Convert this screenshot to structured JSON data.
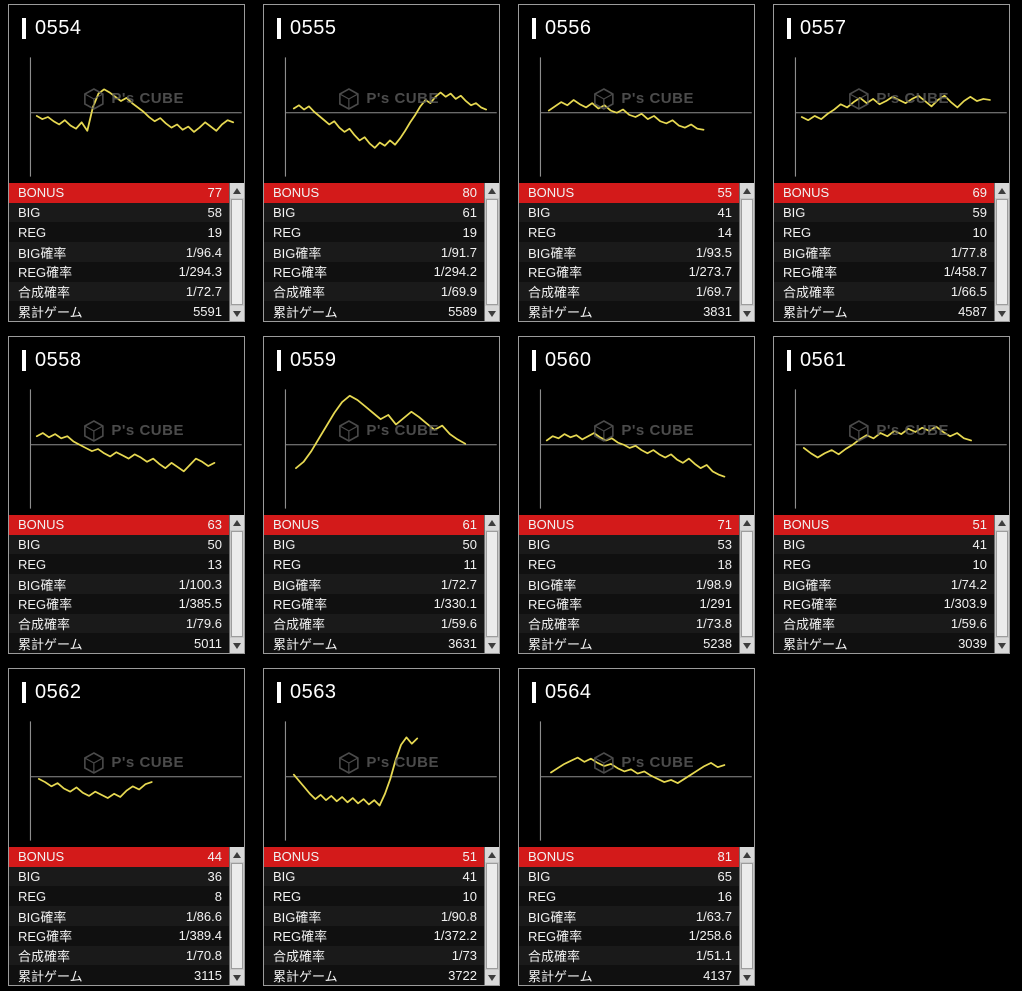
{
  "watermark": {
    "brand": "P's CUBE"
  },
  "labels": {
    "bonus": "BONUS",
    "big": "BIG",
    "reg": "REG",
    "big_rate": "BIG確率",
    "reg_rate": "REG確率",
    "combined_rate": "合成確率",
    "total_games": "累計ゲーム"
  },
  "colors": {
    "line": "#e7d952",
    "axis": "#8d8d8d",
    "bonus_bg": "#d31a1a",
    "watermark": "#5e5e5e"
  },
  "machines": [
    {
      "id": "0554",
      "bonus": "77",
      "big": "58",
      "reg": "19",
      "big_rate": "1/96.4",
      "reg_rate": "1/294.3",
      "combined_rate": "1/72.7",
      "total_games": "5591",
      "trend": {
        "start": 0.03,
        "end": 0.97,
        "y": [
          -3,
          -6,
          -4,
          -8,
          -11,
          -7,
          -12,
          -15,
          -9,
          -17,
          5,
          18,
          22,
          19,
          15,
          11,
          14,
          9,
          5,
          1,
          -4,
          -8,
          -5,
          -10,
          -14,
          -11,
          -16,
          -13,
          -18,
          -14,
          -9,
          -13,
          -17,
          -11,
          -7,
          -9
        ]
      }
    },
    {
      "id": "0555",
      "bonus": "80",
      "big": "61",
      "reg": "19",
      "big_rate": "1/91.7",
      "reg_rate": "1/294.2",
      "combined_rate": "1/69.9",
      "total_games": "5589",
      "trend": {
        "start": 0.04,
        "end": 0.96,
        "y": [
          4,
          7,
          3,
          6,
          1,
          -3,
          -7,
          -11,
          -8,
          -14,
          -18,
          -15,
          -21,
          -26,
          -23,
          -29,
          -33,
          -28,
          -31,
          -26,
          -30,
          -24,
          -17,
          -9,
          -2,
          6,
          12,
          9,
          15,
          19,
          15,
          18,
          13,
          16,
          11,
          7,
          9,
          5,
          3
        ]
      }
    },
    {
      "id": "0556",
      "bonus": "55",
      "big": "41",
      "reg": "14",
      "big_rate": "1/93.5",
      "reg_rate": "1/273.7",
      "combined_rate": "1/69.7",
      "total_games": "3831",
      "trend": {
        "start": 0.04,
        "end": 0.78,
        "y": [
          2,
          6,
          10,
          7,
          12,
          8,
          5,
          9,
          4,
          7,
          2,
          0,
          3,
          -2,
          -4,
          -1,
          -6,
          -3,
          -8,
          -10,
          -7,
          -12,
          -14,
          -11,
          -15,
          -16
        ]
      }
    },
    {
      "id": "0557",
      "bonus": "69",
      "big": "59",
      "reg": "10",
      "big_rate": "1/77.8",
      "reg_rate": "1/458.7",
      "combined_rate": "1/66.5",
      "total_games": "4587",
      "trend": {
        "start": 0.03,
        "end": 0.93,
        "y": [
          -4,
          -7,
          -3,
          -6,
          -1,
          3,
          8,
          5,
          10,
          14,
          9,
          13,
          8,
          11,
          15,
          12,
          9,
          13,
          16,
          11,
          6,
          12,
          16,
          10,
          5,
          11,
          15,
          11,
          13,
          12
        ]
      }
    },
    {
      "id": "0558",
      "bonus": "63",
      "big": "50",
      "reg": "13",
      "big_rate": "1/100.3",
      "reg_rate": "1/385.5",
      "combined_rate": "1/79.6",
      "total_games": "5011",
      "trend": {
        "start": 0.03,
        "end": 0.88,
        "y": [
          8,
          11,
          7,
          10,
          6,
          8,
          3,
          0,
          -3,
          -6,
          -4,
          -8,
          -11,
          -7,
          -10,
          -13,
          -9,
          -12,
          -16,
          -13,
          -18,
          -22,
          -17,
          -21,
          -25,
          -19,
          -13,
          -16,
          -20,
          -17
        ]
      }
    },
    {
      "id": "0559",
      "bonus": "61",
      "big": "50",
      "reg": "11",
      "big_rate": "1/72.7",
      "reg_rate": "1/330.1",
      "combined_rate": "1/59.6",
      "total_games": "3631",
      "trend": {
        "start": 0.05,
        "end": 0.86,
        "y": [
          -22,
          -16,
          -6,
          6,
          18,
          30,
          40,
          46,
          42,
          36,
          30,
          24,
          28,
          19,
          25,
          31,
          26,
          20,
          14,
          18,
          10,
          5,
          1
        ]
      }
    },
    {
      "id": "0560",
      "bonus": "71",
      "big": "53",
      "reg": "18",
      "big_rate": "1/98.9",
      "reg_rate": "1/291",
      "combined_rate": "1/73.8",
      "total_games": "5238",
      "trend": {
        "start": 0.03,
        "end": 0.88,
        "y": [
          4,
          8,
          6,
          10,
          7,
          9,
          5,
          8,
          11,
          7,
          4,
          6,
          2,
          0,
          -3,
          -1,
          -5,
          -8,
          -5,
          -9,
          -12,
          -9,
          -14,
          -17,
          -13,
          -18,
          -22,
          -19,
          -25,
          -28,
          -30
        ]
      }
    },
    {
      "id": "0561",
      "bonus": "51",
      "big": "41",
      "reg": "10",
      "big_rate": "1/74.2",
      "reg_rate": "1/303.9",
      "combined_rate": "1/59.6",
      "total_games": "3039",
      "trend": {
        "start": 0.04,
        "end": 0.84,
        "y": [
          -3,
          -8,
          -12,
          -8,
          -5,
          -9,
          -4,
          0,
          5,
          9,
          6,
          11,
          8,
          13,
          10,
          15,
          12,
          16,
          13,
          17,
          12,
          8,
          11,
          6,
          4
        ]
      }
    },
    {
      "id": "0562",
      "bonus": "44",
      "big": "36",
      "reg": "8",
      "big_rate": "1/86.6",
      "reg_rate": "1/389.4",
      "combined_rate": "1/70.8",
      "total_games": "3115",
      "trend": {
        "start": 0.04,
        "end": 0.58,
        "y": [
          -2,
          -5,
          -9,
          -6,
          -11,
          -14,
          -10,
          -15,
          -18,
          -14,
          -17,
          -20,
          -16,
          -19,
          -13,
          -9,
          -12,
          -7,
          -5
        ]
      }
    },
    {
      "id": "0563",
      "bonus": "51",
      "big": "41",
      "reg": "10",
      "big_rate": "1/90.8",
      "reg_rate": "1/372.2",
      "combined_rate": "1/73",
      "total_games": "3722",
      "trend": {
        "start": 0.04,
        "end": 0.63,
        "y": [
          2,
          -4,
          -10,
          -16,
          -21,
          -17,
          -22,
          -18,
          -23,
          -19,
          -24,
          -20,
          -25,
          -21,
          -26,
          -22,
          -27,
          -16,
          -2,
          16,
          30,
          37,
          31,
          36
        ]
      }
    },
    {
      "id": "0564",
      "bonus": "81",
      "big": "65",
      "reg": "16",
      "big_rate": "1/63.7",
      "reg_rate": "1/258.6",
      "combined_rate": "1/51.1",
      "total_games": "4137",
      "trend": {
        "start": 0.05,
        "end": 0.88,
        "y": [
          4,
          8,
          12,
          15,
          18,
          14,
          17,
          13,
          10,
          12,
          8,
          5,
          7,
          3,
          5,
          1,
          -2,
          -5,
          -3,
          -6,
          -2,
          2,
          6,
          10,
          13,
          9,
          11
        ]
      }
    }
  ]
}
